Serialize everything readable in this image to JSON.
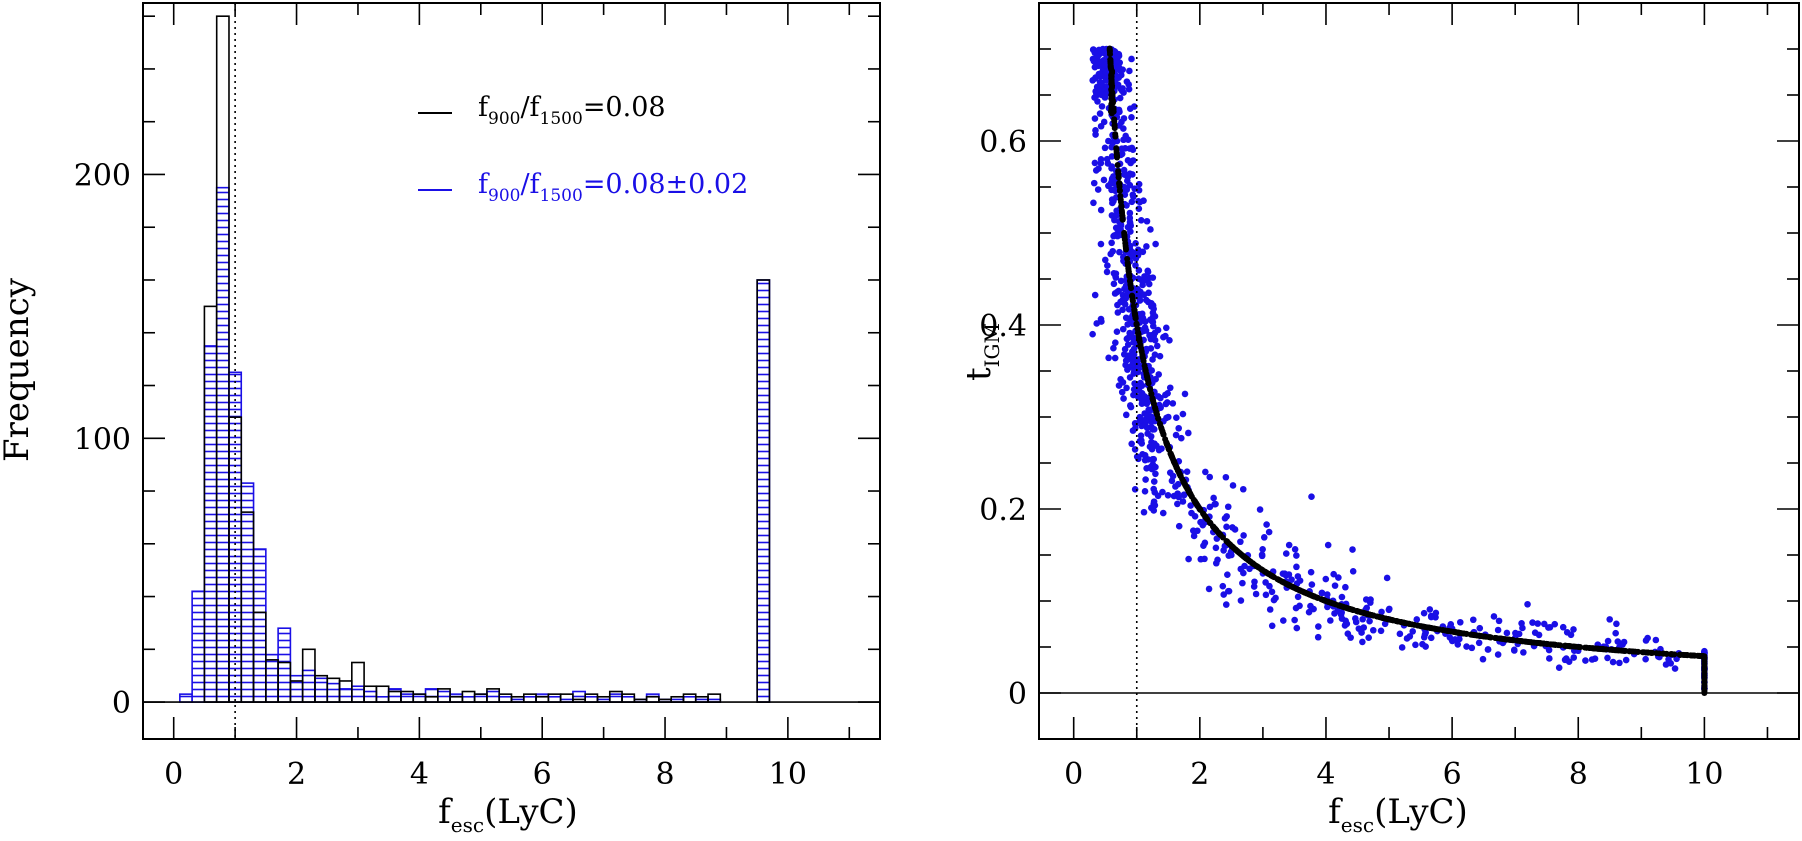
{
  "colors": {
    "black": "#000000",
    "blue": "#1a0fe6"
  },
  "chart_data": [
    {
      "type": "histogram",
      "ylabel": "Frequency",
      "xlabel": {
        "main": "f",
        "sub": "esc",
        "rest": "(LyC)"
      },
      "xlim": [
        -0.5,
        11.5
      ],
      "ylim": [
        -14,
        265
      ],
      "xticks": [
        0,
        2,
        4,
        6,
        8,
        10
      ],
      "xtick_labels": [
        "0",
        "2",
        "4",
        "6",
        "8",
        "10"
      ],
      "yticks": [
        0,
        100,
        200
      ],
      "ytick_labels": [
        "0",
        "100",
        "200"
      ],
      "bin_width": 0.2,
      "bin_start": 0.1,
      "vline_x": 1.0,
      "series": [
        {
          "name": "f900/f1500=0.08",
          "legend": {
            "f1": "f",
            "s1": "900",
            "sep": "/f",
            "s2": "1500",
            "rest": "=0.08"
          },
          "color": "black",
          "fill": "none",
          "values": [
            0,
            0,
            150,
            260,
            108,
            72,
            34,
            16,
            15,
            8,
            20,
            10,
            9,
            8,
            15,
            6,
            6,
            4,
            4,
            3,
            2,
            5,
            2,
            4,
            3,
            5,
            3,
            2,
            3,
            2,
            3,
            3,
            1,
            3,
            2,
            4,
            3,
            1,
            2,
            1,
            2,
            3,
            2,
            3,
            0,
            0,
            0,
            160
          ]
        },
        {
          "name": "f900/f1500=0.08±0.02",
          "legend": {
            "f1": "f",
            "s1": "900",
            "sep": "/f",
            "s2": "1500",
            "rest": "=0.08±0.02"
          },
          "color": "blue",
          "fill": "hatch",
          "values": [
            3,
            42,
            135,
            195,
            125,
            83,
            58,
            18,
            28,
            10,
            12,
            9,
            7,
            5,
            6,
            4,
            2,
            5,
            3,
            3,
            5,
            4,
            3,
            2,
            3,
            4,
            2,
            1,
            2,
            3,
            2,
            1,
            4,
            2,
            1,
            3,
            2,
            1,
            3,
            1,
            1,
            2,
            1,
            1,
            0,
            0,
            0,
            160
          ]
        }
      ]
    },
    {
      "type": "scatter",
      "ylabel": {
        "main": "t",
        "sub": "IGM"
      },
      "xlabel": {
        "main": "f",
        "sub": "esc",
        "rest": "(LyC)"
      },
      "xlim": [
        -0.55,
        11.5
      ],
      "ylim": [
        -0.05,
        0.75
      ],
      "xticks": [
        0,
        2,
        4,
        6,
        8,
        10
      ],
      "xtick_labels": [
        "0",
        "2",
        "4",
        "6",
        "8",
        "10"
      ],
      "yticks": [
        0,
        0.2,
        0.4,
        0.6
      ],
      "ytick_labels": [
        "0",
        "0.2",
        "0.4",
        "0.6"
      ],
      "vline_x": 1.0,
      "hline_y": 0,
      "curve": {
        "description": "t = 0.4 / f (fixed ratio 0.08)",
        "color": "black",
        "x_start": 0.57,
        "x_end": 10.0
      },
      "scatter": {
        "color": "blue",
        "n_points": 1000,
        "points_sample": [
          [
            0.52,
            0.7
          ],
          [
            0.62,
            0.69
          ],
          [
            0.3,
            0.39
          ],
          [
            0.55,
            0.6
          ],
          [
            0.8,
            0.55
          ],
          [
            1.2,
            0.35
          ],
          [
            1.5,
            0.3
          ],
          [
            2.0,
            0.2
          ],
          [
            2.5,
            0.15
          ],
          [
            3.0,
            0.13
          ],
          [
            4.0,
            0.1
          ],
          [
            5.0,
            0.08
          ],
          [
            6.0,
            0.07
          ],
          [
            7.0,
            0.06
          ],
          [
            8.0,
            0.05
          ],
          [
            9.3,
            0.045
          ],
          [
            10.0,
            0.04
          ]
        ]
      }
    }
  ]
}
